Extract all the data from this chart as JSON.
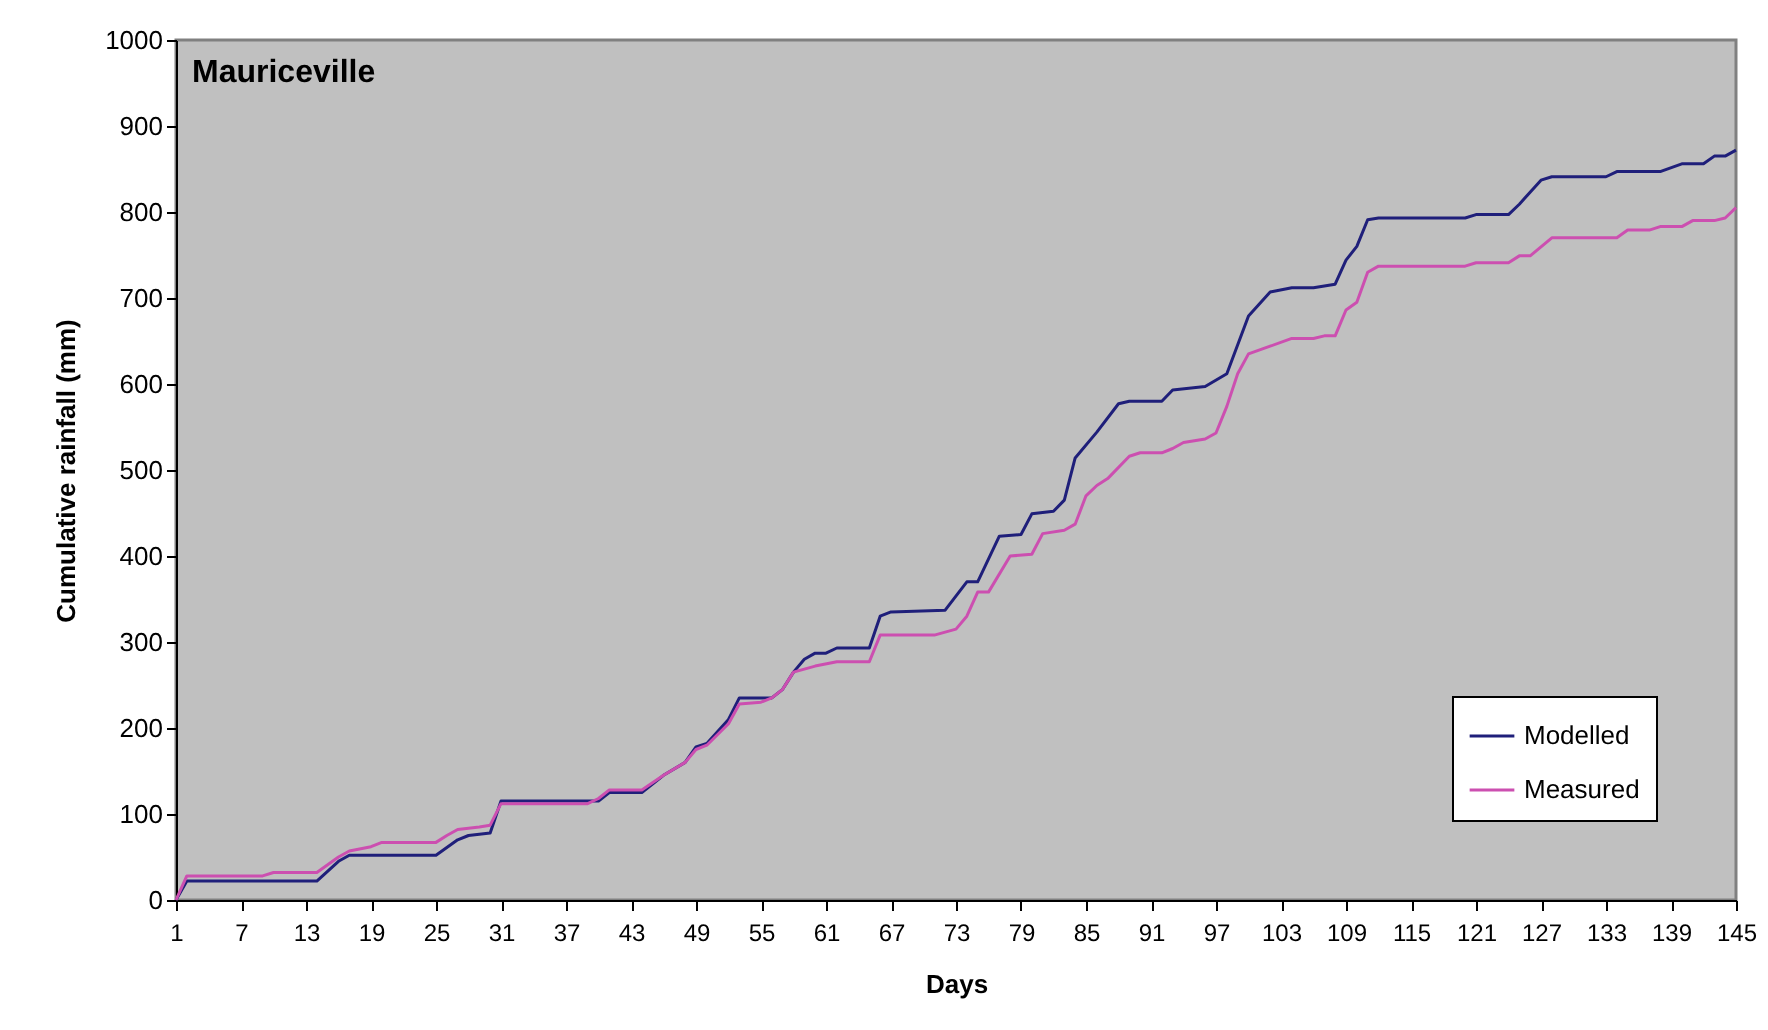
{
  "chart_data": {
    "type": "line",
    "title": "Mauriceville",
    "xlabel": "Days",
    "ylabel": "Cumulative rainfall (mm)",
    "xlim": [
      1,
      145
    ],
    "xticks": [
      1,
      7,
      13,
      19,
      25,
      31,
      37,
      43,
      49,
      55,
      61,
      67,
      73,
      79,
      85,
      91,
      97,
      103,
      109,
      115,
      121,
      127,
      133,
      139,
      145
    ],
    "ylim": [
      0,
      1000
    ],
    "yticks": [
      0,
      100,
      200,
      300,
      400,
      500,
      600,
      700,
      800,
      900,
      1000
    ],
    "grid": false,
    "legend": "bottom right",
    "marker": "none",
    "line_style": "solid",
    "series": [
      {
        "name": "Modelled",
        "color": "#1f1f7a",
        "x": [
          1,
          2,
          14,
          16,
          17,
          25,
          27,
          28,
          30,
          31,
          40,
          41,
          44,
          46,
          48,
          49,
          50,
          52,
          53,
          56,
          57,
          58,
          59,
          60,
          61,
          62,
          65,
          66,
          67,
          72,
          74,
          75,
          77,
          79,
          80,
          82,
          83,
          84,
          86,
          88,
          89,
          92,
          93,
          96,
          98,
          100,
          102,
          104,
          106,
          108,
          109,
          110,
          111,
          112,
          120,
          121,
          124,
          125,
          127,
          128,
          133,
          134,
          138,
          140,
          142,
          143,
          144,
          145
        ],
        "values": [
          0,
          22,
          22,
          45,
          52,
          52,
          70,
          75,
          78,
          115,
          115,
          125,
          125,
          145,
          160,
          178,
          182,
          210,
          235,
          235,
          245,
          265,
          280,
          287,
          287,
          293,
          293,
          330,
          335,
          337,
          370,
          370,
          423,
          425,
          449,
          452,
          465,
          514,
          544,
          577,
          580,
          580,
          593,
          597,
          612,
          679,
          707,
          712,
          712,
          716,
          744,
          760,
          791,
          793,
          793,
          797,
          797,
          809,
          837,
          841,
          841,
          847,
          847,
          856,
          856,
          865,
          865,
          872
        ]
      },
      {
        "name": "Measured",
        "color": "#cc4fb0",
        "x": [
          1,
          2,
          9,
          10,
          14,
          16,
          17,
          19,
          20,
          25,
          26,
          27,
          29,
          30,
          31,
          39,
          40,
          41,
          44,
          46,
          48,
          49,
          50,
          52,
          53,
          55,
          56,
          57,
          58,
          60,
          62,
          65,
          66,
          71,
          73,
          74,
          75,
          76,
          78,
          80,
          81,
          83,
          84,
          85,
          86,
          87,
          89,
          90,
          92,
          93,
          94,
          96,
          97,
          98,
          99,
          100,
          102,
          104,
          106,
          107,
          108,
          109,
          110,
          111,
          112,
          120,
          121,
          124,
          125,
          126,
          128,
          134,
          135,
          137,
          138,
          140,
          141,
          143,
          144,
          145
        ],
        "values": [
          0,
          28,
          28,
          32,
          32,
          50,
          57,
          62,
          67,
          67,
          75,
          82,
          85,
          87,
          112,
          112,
          118,
          128,
          128,
          145,
          160,
          175,
          180,
          205,
          228,
          230,
          235,
          245,
          265,
          272,
          277,
          277,
          308,
          308,
          315,
          330,
          358,
          358,
          400,
          402,
          426,
          430,
          437,
          470,
          482,
          490,
          516,
          520,
          520,
          525,
          532,
          536,
          543,
          574,
          612,
          635,
          644,
          653,
          653,
          656,
          656,
          686,
          695,
          730,
          737,
          737,
          741,
          741,
          749,
          749,
          770,
          770,
          779,
          779,
          783,
          783,
          790,
          790,
          793,
          805
        ]
      }
    ]
  }
}
